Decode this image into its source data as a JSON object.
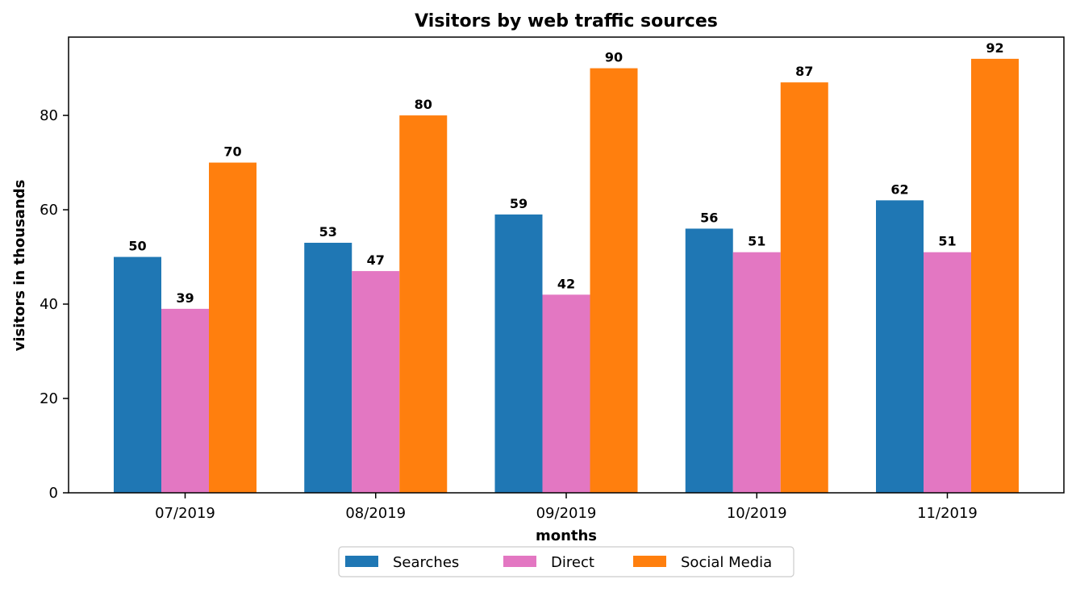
{
  "chart_data": {
    "type": "bar",
    "title": "Visitors by web traffic sources",
    "xlabel": "months",
    "ylabel": "visitors in thousands",
    "categories": [
      "07/2019",
      "08/2019",
      "09/2019",
      "10/2019",
      "11/2019"
    ],
    "series": [
      {
        "name": "Searches",
        "color": "#1f77b4",
        "values": [
          50,
          53,
          59,
          56,
          62
        ]
      },
      {
        "name": "Direct",
        "color": "#e377c2",
        "values": [
          39,
          47,
          42,
          51,
          51
        ]
      },
      {
        "name": "Social Media",
        "color": "#ff7f0e",
        "values": [
          70,
          80,
          90,
          87,
          92
        ]
      }
    ],
    "ylim": [
      0,
      96.6
    ],
    "yticks": [
      0,
      20,
      40,
      60,
      80
    ],
    "grid": false,
    "legend": "bottom-center, below axes, horizontal",
    "data_labels": true
  }
}
